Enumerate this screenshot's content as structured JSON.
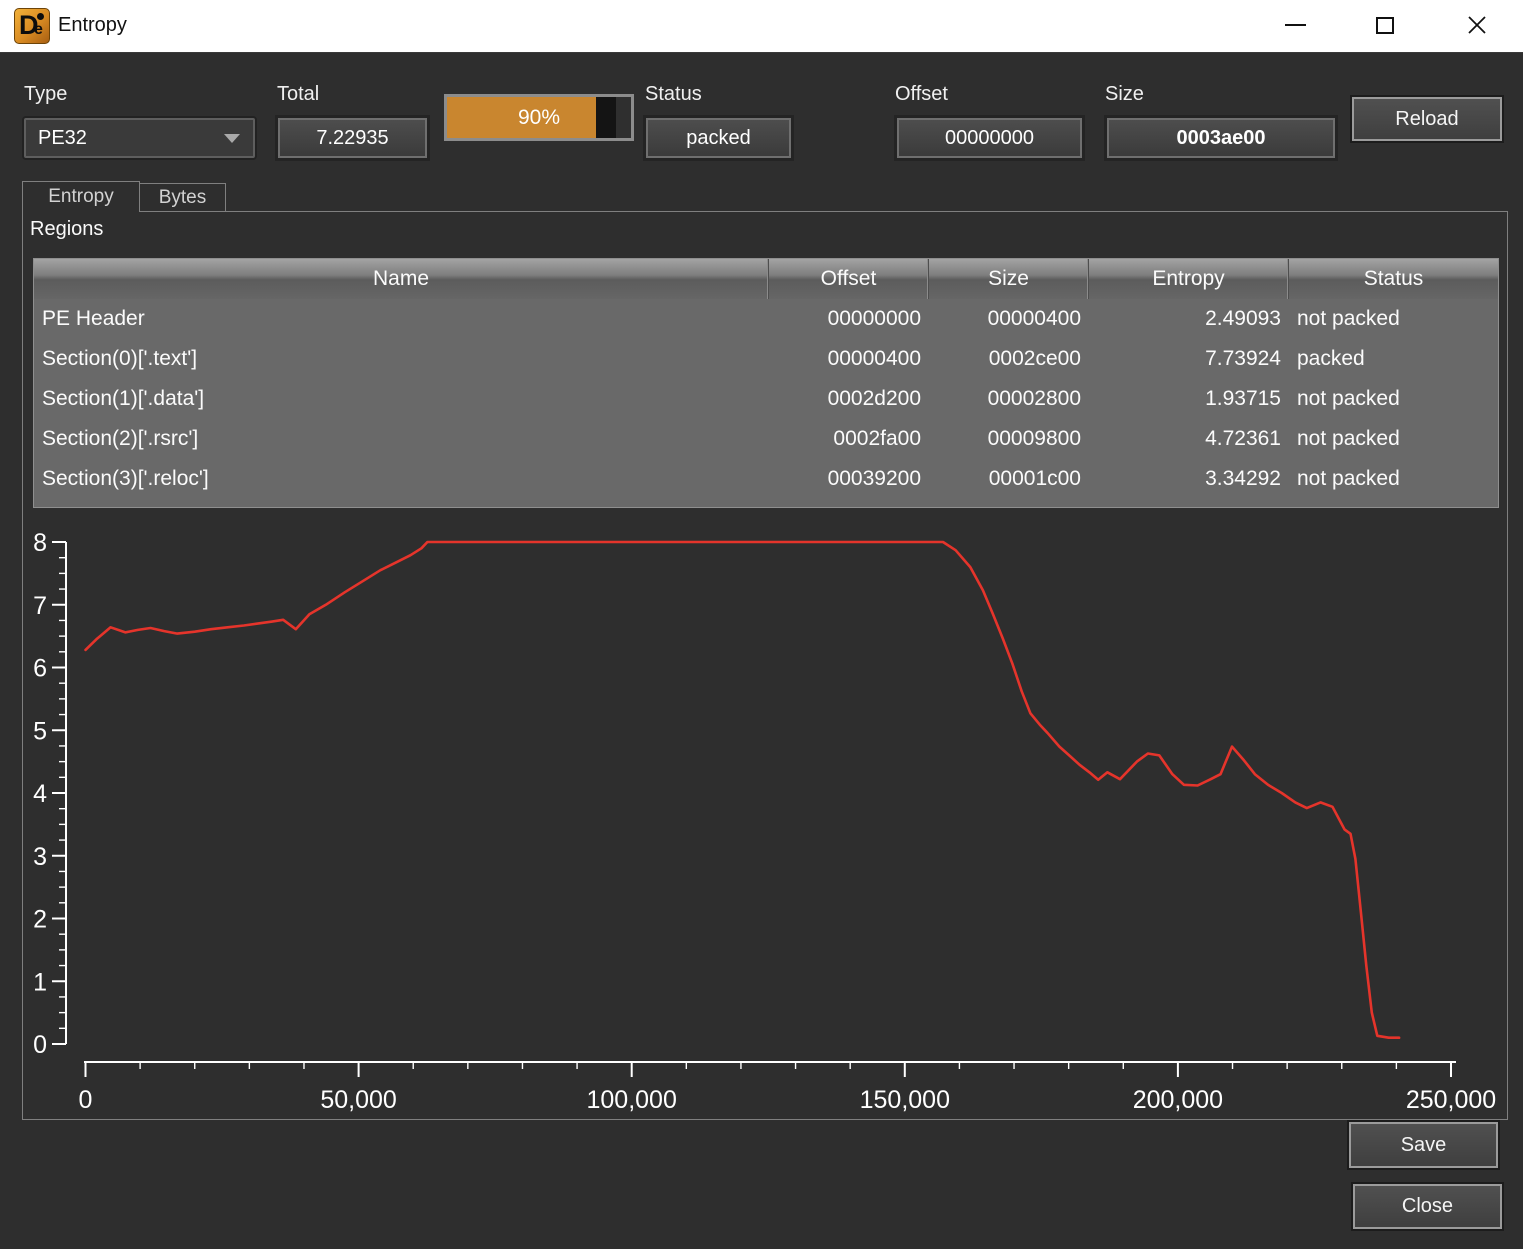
{
  "window": {
    "title": "Entropy",
    "logo_d": "D",
    "logo_e": "e"
  },
  "controls": {
    "type": {
      "label": "Type",
      "value": "PE32"
    },
    "total": {
      "label": "Total",
      "value": "7.22935"
    },
    "progress": {
      "text": "90%",
      "fill_percent": 81,
      "dark_band_percent": 11,
      "fill_color": "#c9862f"
    },
    "status": {
      "label": "Status",
      "value": "packed"
    },
    "offset": {
      "label": "Offset",
      "value": "00000000"
    },
    "size": {
      "label": "Size",
      "value": "0003ae00"
    },
    "reload": {
      "label": "Reload"
    }
  },
  "tabs": [
    {
      "label": "Entropy",
      "selected": true
    },
    {
      "label": "Bytes",
      "selected": false
    }
  ],
  "regions": {
    "title": "Regions",
    "columns": [
      "Name",
      "Offset",
      "Size",
      "Entropy",
      "Status"
    ],
    "rows": [
      [
        "PE Header",
        "00000000",
        "00000400",
        "2.49093",
        "not packed"
      ],
      [
        "Section(0)['.text']",
        "00000400",
        "0002ce00",
        "7.73924",
        "packed"
      ],
      [
        "Section(1)['.data']",
        "0002d200",
        "00002800",
        "1.93715",
        "not packed"
      ],
      [
        "Section(2)['.rsrc']",
        "0002fa00",
        "00009800",
        "4.72361",
        "not packed"
      ],
      [
        "Section(3)['.reloc']",
        "00039200",
        "00001c00",
        "3.34292",
        "not packed"
      ]
    ]
  },
  "chart_data": {
    "type": "line",
    "title": "",
    "xlabel": "",
    "ylabel": "",
    "xlim": [
      0,
      250000
    ],
    "ylim": [
      0,
      8
    ],
    "x_major_ticks": [
      0,
      50000,
      100000,
      150000,
      200000,
      250000
    ],
    "x_tick_labels": [
      "0",
      "50,000",
      "100,000",
      "150,000",
      "200,000",
      "250,000"
    ],
    "y_major_ticks": [
      0,
      1,
      2,
      3,
      4,
      5,
      6,
      7,
      8
    ],
    "x_minor_step": 10000,
    "y_minor_step": 0.25,
    "grid": false,
    "legend": false,
    "axis_color": "#ffffff",
    "line_color": "#e5342b",
    "series": [
      {
        "name": "entropy",
        "points": [
          [
            0,
            6.28
          ],
          [
            2000,
            6.45
          ],
          [
            4600,
            6.64
          ],
          [
            7300,
            6.56
          ],
          [
            9600,
            6.6
          ],
          [
            11900,
            6.63
          ],
          [
            14400,
            6.58
          ],
          [
            16800,
            6.54
          ],
          [
            20000,
            6.57
          ],
          [
            23000,
            6.61
          ],
          [
            26000,
            6.64
          ],
          [
            29000,
            6.67
          ],
          [
            31500,
            6.7
          ],
          [
            34000,
            6.73
          ],
          [
            36200,
            6.76
          ],
          [
            38500,
            6.61
          ],
          [
            41000,
            6.85
          ],
          [
            44000,
            7.0
          ],
          [
            47500,
            7.2
          ],
          [
            51000,
            7.39
          ],
          [
            54000,
            7.55
          ],
          [
            57000,
            7.68
          ],
          [
            59500,
            7.79
          ],
          [
            61500,
            7.9
          ],
          [
            62600,
            8.0
          ],
          [
            157000,
            8.0
          ],
          [
            159300,
            7.87
          ],
          [
            162000,
            7.6
          ],
          [
            164300,
            7.23
          ],
          [
            166100,
            6.86
          ],
          [
            167900,
            6.47
          ],
          [
            169700,
            6.06
          ],
          [
            171400,
            5.62
          ],
          [
            173000,
            5.27
          ],
          [
            174700,
            5.09
          ],
          [
            176100,
            4.96
          ],
          [
            178300,
            4.74
          ],
          [
            180100,
            4.6
          ],
          [
            182000,
            4.45
          ],
          [
            183800,
            4.33
          ],
          [
            185400,
            4.21
          ],
          [
            187100,
            4.33
          ],
          [
            189400,
            4.22
          ],
          [
            192500,
            4.5
          ],
          [
            194500,
            4.63
          ],
          [
            196600,
            4.6
          ],
          [
            199000,
            4.3
          ],
          [
            201100,
            4.13
          ],
          [
            203600,
            4.12
          ],
          [
            206000,
            4.22
          ],
          [
            207800,
            4.3
          ],
          [
            209900,
            4.74
          ],
          [
            212100,
            4.52
          ],
          [
            214100,
            4.3
          ],
          [
            216500,
            4.13
          ],
          [
            219000,
            4.0
          ],
          [
            221500,
            3.85
          ],
          [
            223600,
            3.76
          ],
          [
            226100,
            3.85
          ],
          [
            228300,
            3.78
          ],
          [
            230500,
            3.42
          ],
          [
            231600,
            3.35
          ],
          [
            232500,
            2.95
          ],
          [
            233500,
            2.1
          ],
          [
            234500,
            1.25
          ],
          [
            235500,
            0.5
          ],
          [
            236500,
            0.13
          ],
          [
            238600,
            0.1
          ],
          [
            240500,
            0.1
          ]
        ]
      }
    ]
  },
  "footer": {
    "save": "Save",
    "close": "Close"
  }
}
